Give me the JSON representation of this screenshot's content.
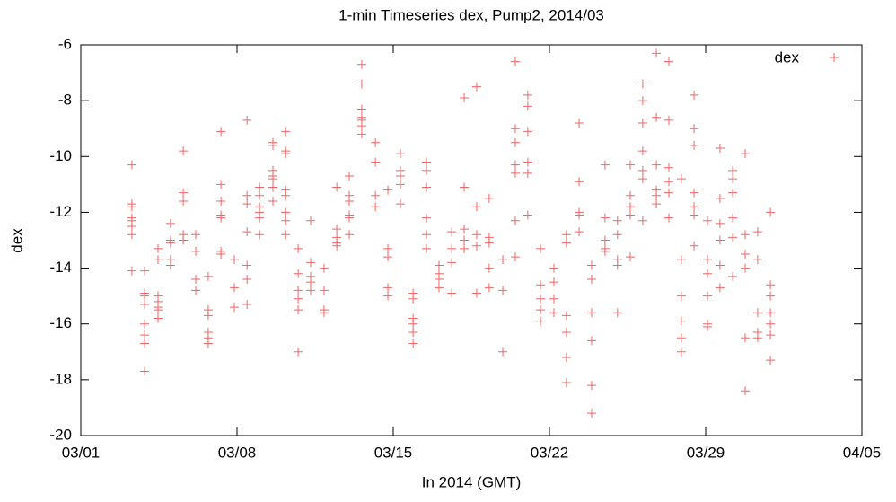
{
  "chart_data": {
    "type": "scatter",
    "title": "1-min Timeseries dex, Pump2, 2014/03",
    "xlabel": "In 2014 (GMT)",
    "ylabel": "dex",
    "xlim": [
      1,
      36
    ],
    "xticks": [
      {
        "value": 1,
        "label": "03/01"
      },
      {
        "value": 8,
        "label": "03/08"
      },
      {
        "value": 15,
        "label": "03/15"
      },
      {
        "value": 22,
        "label": "03/22"
      },
      {
        "value": 29,
        "label": "03/29"
      },
      {
        "value": 36,
        "label": "04/05"
      }
    ],
    "ylim": [
      -20,
      -6
    ],
    "yticks": [
      -20,
      -18,
      -16,
      -14,
      -12,
      -10,
      -8,
      -6
    ],
    "legend": "upper right",
    "series": [
      {
        "name": "dex",
        "color": "#ee6666",
        "x": [
          3.29,
          3.29,
          3.29,
          3.29,
          3.29,
          3.29,
          3.29,
          3.29,
          3.86,
          3.86,
          3.86,
          3.86,
          3.86,
          3.86,
          3.86,
          3.86,
          4.46,
          4.46,
          4.46,
          4.46,
          4.46,
          4.46,
          4.46,
          5.02,
          5.02,
          5.02,
          5.02,
          5.02,
          5.59,
          5.59,
          5.59,
          5.59,
          5.59,
          6.15,
          6.15,
          6.15,
          6.15,
          6.71,
          6.71,
          6.71,
          6.71,
          6.71,
          6.71,
          7.28,
          7.28,
          7.28,
          7.28,
          7.28,
          7.28,
          7.28,
          7.88,
          7.88,
          7.88,
          8.45,
          8.45,
          8.45,
          8.45,
          8.45,
          8.45,
          8.45,
          9.01,
          9.01,
          9.01,
          9.01,
          9.01,
          9.01,
          9.61,
          9.61,
          9.61,
          9.61,
          9.61,
          9.61,
          9.61,
          10.18,
          10.18,
          10.18,
          10.18,
          10.18,
          10.18,
          10.18,
          10.18,
          10.74,
          10.74,
          10.74,
          10.74,
          10.74,
          10.74,
          11.3,
          11.3,
          11.3,
          11.3,
          11.3,
          11.9,
          11.9,
          11.9,
          11.9,
          12.47,
          12.47,
          12.47,
          12.47,
          12.47,
          13.03,
          13.03,
          13.03,
          13.03,
          13.03,
          13.03,
          13.59,
          13.59,
          13.59,
          13.59,
          13.59,
          13.59,
          13.59,
          14.2,
          14.2,
          14.2,
          14.2,
          14.76,
          14.76,
          14.76,
          14.76,
          14.76,
          15.32,
          15.32,
          15.32,
          15.32,
          15.32,
          15.89,
          15.89,
          15.89,
          15.89,
          15.89,
          15.89,
          16.49,
          16.49,
          16.49,
          16.49,
          16.49,
          16.49,
          17.05,
          17.05,
          17.05,
          17.05,
          17.62,
          17.62,
          17.62,
          17.62,
          18.18,
          18.18,
          18.18,
          18.18,
          18.18,
          18.74,
          18.74,
          18.74,
          18.74,
          18.74,
          19.3,
          19.3,
          19.3,
          19.3,
          19.3,
          19.91,
          19.91,
          19.91,
          20.47,
          20.47,
          20.47,
          20.47,
          20.47,
          20.47,
          20.47,
          21.03,
          21.03,
          21.03,
          21.03,
          21.03,
          21.03,
          21.6,
          21.6,
          21.6,
          21.6,
          21.6,
          22.2,
          22.2,
          22.2,
          22.2,
          22.76,
          22.76,
          22.76,
          22.76,
          22.76,
          22.76,
          23.33,
          23.33,
          23.33,
          23.33,
          23.33,
          23.89,
          23.89,
          23.89,
          23.89,
          23.89,
          23.89,
          24.49,
          24.49,
          24.49,
          24.49,
          24.49,
          25.05,
          25.05,
          25.05,
          25.05,
          25.05,
          25.62,
          25.62,
          25.62,
          25.62,
          25.62,
          26.18,
          26.18,
          26.18,
          26.18,
          26.18,
          26.18,
          26.18,
          26.79,
          26.79,
          26.79,
          26.79,
          26.79,
          26.79,
          27.35,
          27.35,
          27.35,
          27.35,
          27.35,
          27.35,
          27.91,
          27.91,
          27.91,
          27.91,
          27.91,
          27.91,
          28.48,
          28.48,
          28.48,
          28.48,
          28.48,
          28.48,
          28.48,
          29.08,
          29.08,
          29.08,
          29.08,
          29.08,
          29.08,
          29.64,
          29.64,
          29.64,
          29.64,
          29.64,
          29.64,
          30.21,
          30.21,
          30.21,
          30.21,
          30.21,
          30.21,
          30.77,
          30.77,
          30.77,
          30.77,
          30.77,
          30.77,
          31.33,
          31.33,
          31.33,
          31.33,
          31.33,
          31.9,
          31.9,
          31.9,
          31.9,
          31.9,
          31.9,
          31.9
        ],
        "values": [
          -10.3,
          -11.7,
          -11.8,
          -12.2,
          -12.3,
          -12.5,
          -12.8,
          -14.1,
          -14.1,
          -14.9,
          -15.0,
          -15.3,
          -16.0,
          -16.4,
          -16.7,
          -17.7,
          -13.3,
          -13.7,
          -15.0,
          -15.2,
          -15.4,
          -15.5,
          -15.8,
          -12.4,
          -13.0,
          -13.1,
          -13.7,
          -13.9,
          -9.8,
          -11.3,
          -11.6,
          -12.8,
          -13.0,
          -12.8,
          -13.4,
          -14.4,
          -14.8,
          -14.3,
          -15.5,
          -15.7,
          -16.3,
          -16.5,
          -16.7,
          -9.1,
          -11.0,
          -11.6,
          -12.1,
          -12.2,
          -13.4,
          -13.5,
          -13.7,
          -14.7,
          -15.4,
          -8.7,
          -11.4,
          -11.7,
          -12.7,
          -13.9,
          -14.4,
          -15.3,
          -11.1,
          -11.4,
          -11.8,
          -12.0,
          -12.2,
          -12.8,
          -9.5,
          -9.6,
          -10.5,
          -10.7,
          -10.8,
          -11.1,
          -11.6,
          -9.1,
          -9.8,
          -9.9,
          -11.2,
          -11.4,
          -12.0,
          -12.3,
          -12.8,
          -13.3,
          -14.2,
          -14.8,
          -15.1,
          -15.5,
          -17.0,
          -12.3,
          -13.8,
          -14.3,
          -14.5,
          -14.8,
          -14.0,
          -14.8,
          -15.5,
          -15.6,
          -11.1,
          -12.6,
          -12.9,
          -13.1,
          -13.2,
          -10.7,
          -11.4,
          -11.6,
          -12.1,
          -12.2,
          -12.8,
          -6.7,
          -7.4,
          -8.3,
          -8.6,
          -8.7,
          -8.9,
          -9.2,
          -9.5,
          -10.2,
          -11.4,
          -11.8,
          -11.2,
          -13.3,
          -13.6,
          -14.7,
          -15.0,
          -9.9,
          -10.5,
          -10.7,
          -11.0,
          -11.7,
          -14.9,
          -15.1,
          -15.8,
          -16.0,
          -16.3,
          -16.7,
          -10.2,
          -10.5,
          -11.1,
          -12.2,
          -12.8,
          -13.3,
          -13.9,
          -14.2,
          -14.4,
          -14.7,
          -12.7,
          -13.3,
          -13.8,
          -14.9,
          -7.9,
          -11.1,
          -12.6,
          -13.0,
          -13.3,
          -7.5,
          -11.8,
          -12.8,
          -13.2,
          -14.9,
          -11.5,
          -12.9,
          -13.1,
          -14.0,
          -14.7,
          -13.7,
          -14.8,
          -17.0,
          -6.6,
          -9.0,
          -9.5,
          -10.3,
          -10.6,
          -12.3,
          -13.6,
          -7.8,
          -8.2,
          -9.1,
          -10.2,
          -10.6,
          -12.1,
          -13.3,
          -14.6,
          -15.1,
          -15.5,
          -15.9,
          -14.0,
          -14.5,
          -15.1,
          -15.6,
          -12.8,
          -13.1,
          -15.7,
          -16.3,
          -17.2,
          -18.1,
          -8.8,
          -10.9,
          -12.0,
          -12.1,
          -12.7,
          -13.9,
          -14.4,
          -15.6,
          -16.6,
          -18.2,
          -19.2,
          -10.3,
          -12.2,
          -13.0,
          -13.3,
          -13.4,
          -12.3,
          -12.8,
          -13.7,
          -13.9,
          -15.6,
          -10.3,
          -11.4,
          -11.8,
          -12.1,
          -13.6,
          -7.4,
          -8.0,
          -8.8,
          -9.8,
          -10.5,
          -10.8,
          -12.3,
          -6.3,
          -8.6,
          -10.3,
          -11.2,
          -11.4,
          -11.7,
          -6.6,
          -8.7,
          -10.4,
          -10.9,
          -11.3,
          -12.2,
          -10.8,
          -13.7,
          -15.0,
          -15.9,
          -16.5,
          -17.0,
          -7.8,
          -9.0,
          -9.6,
          -11.3,
          -11.8,
          -12.1,
          -13.2,
          -12.3,
          -13.7,
          -14.2,
          -15.0,
          -16.0,
          -16.1,
          -9.7,
          -11.5,
          -12.4,
          -13.0,
          -13.9,
          -14.7,
          -10.5,
          -10.8,
          -11.3,
          -12.2,
          -12.9,
          -14.3,
          -9.9,
          -12.8,
          -13.5,
          -14.0,
          -16.5,
          -18.4,
          -12.7,
          -13.7,
          -15.6,
          -16.3,
          -16.5,
          -12.0,
          -14.6,
          -15.0,
          -15.6,
          -16.0,
          -16.4,
          -17.3
        ]
      }
    ]
  }
}
